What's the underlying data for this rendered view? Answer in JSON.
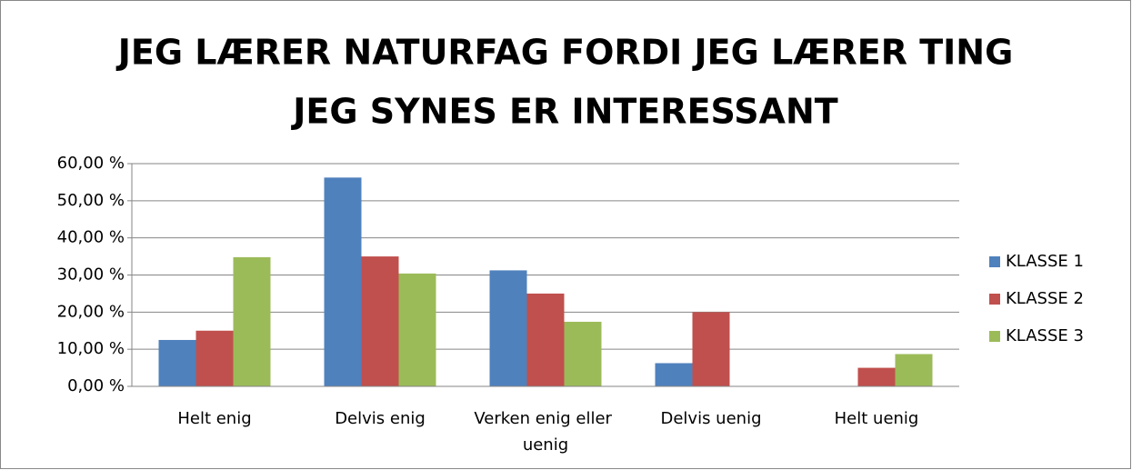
{
  "chart_data": {
    "type": "bar",
    "title": [
      "JEG LÆRER NATURFAG FORDI JEG LÆRER TING",
      "JEG SYNES ER INTERESSANT"
    ],
    "categories": [
      "Helt enig",
      "Delvis enig",
      "Verken enig eller uenig",
      "Delvis uenig",
      "Helt uenig"
    ],
    "series": [
      {
        "name": "KLASSE 1",
        "color": "#4f81bd",
        "values": [
          12.5,
          56.25,
          31.25,
          6.25,
          0
        ]
      },
      {
        "name": "KLASSE 2",
        "color": "#c0504d",
        "values": [
          15,
          35,
          25,
          20,
          5
        ]
      },
      {
        "name": "KLASSE 3",
        "color": "#9bbb59",
        "values": [
          34.8,
          30.4,
          17.4,
          0,
          8.7
        ]
      }
    ],
    "ylim": [
      0,
      60
    ],
    "yticks": [
      {
        "value": 0,
        "label": "0,00 %"
      },
      {
        "value": 10,
        "label": "10,00 %"
      },
      {
        "value": 20,
        "label": "20,00 %"
      },
      {
        "value": 30,
        "label": "30,00 %"
      },
      {
        "value": 40,
        "label": "40,00 %"
      },
      {
        "value": 50,
        "label": "50,00 %"
      },
      {
        "value": 60,
        "label": "60,00 %"
      }
    ],
    "grid": true,
    "legend": "right"
  }
}
